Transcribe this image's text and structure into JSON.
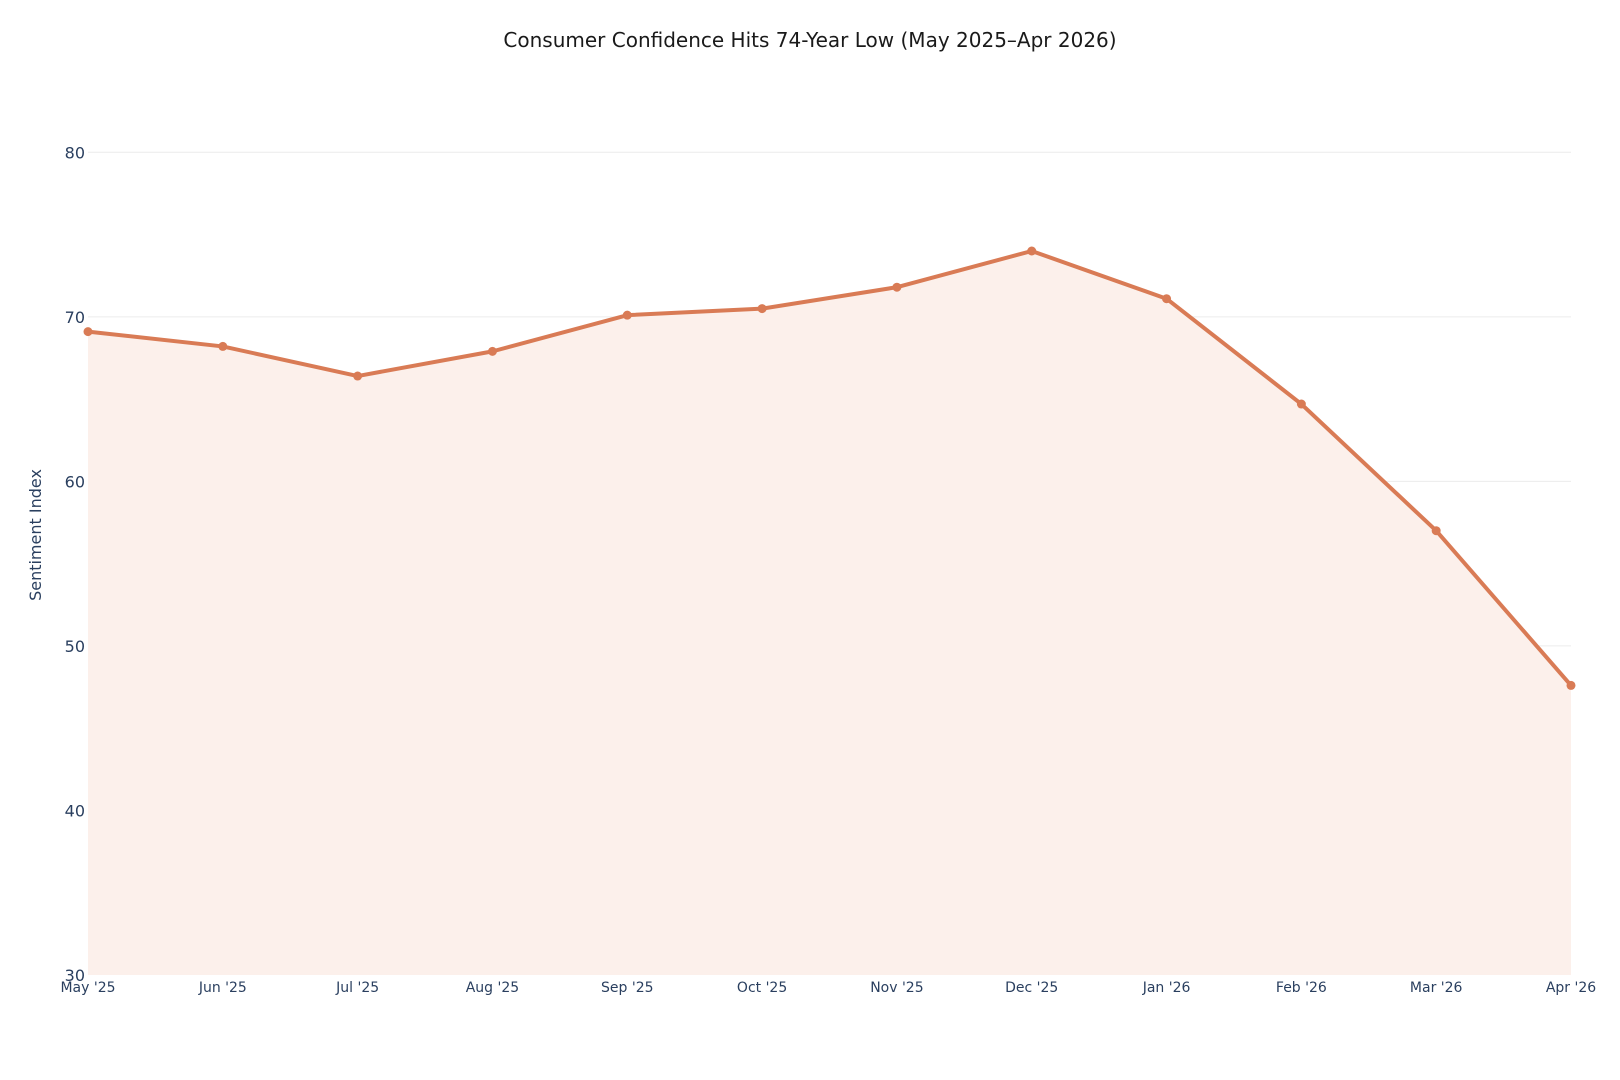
{
  "chart_data": {
    "type": "area",
    "title": "Consumer Confidence Hits 74-Year Low (May 2025–Apr 2026)",
    "xlabel": "",
    "ylabel": "Sentiment Index",
    "categories": [
      "May '25",
      "Jun '25",
      "Jul '25",
      "Aug '25",
      "Sep '25",
      "Oct '25",
      "Nov '25",
      "Dec '25",
      "Jan '26",
      "Feb '26",
      "Mar '26",
      "Apr '26"
    ],
    "series": [
      {
        "values": [
          69.1,
          68.2,
          66.4,
          67.9,
          70.1,
          70.5,
          71.8,
          74.0,
          71.1,
          64.7,
          57.0,
          47.6
        ]
      }
    ],
    "ylim": [
      30,
      85
    ],
    "yticks": [
      30,
      40,
      50,
      60,
      70,
      80
    ],
    "grid": true,
    "legend": "none",
    "colors": {
      "line": "#d97b55",
      "fill": "#fcf0eb",
      "text": "#2a3f5f",
      "grid": "#ececec"
    }
  }
}
